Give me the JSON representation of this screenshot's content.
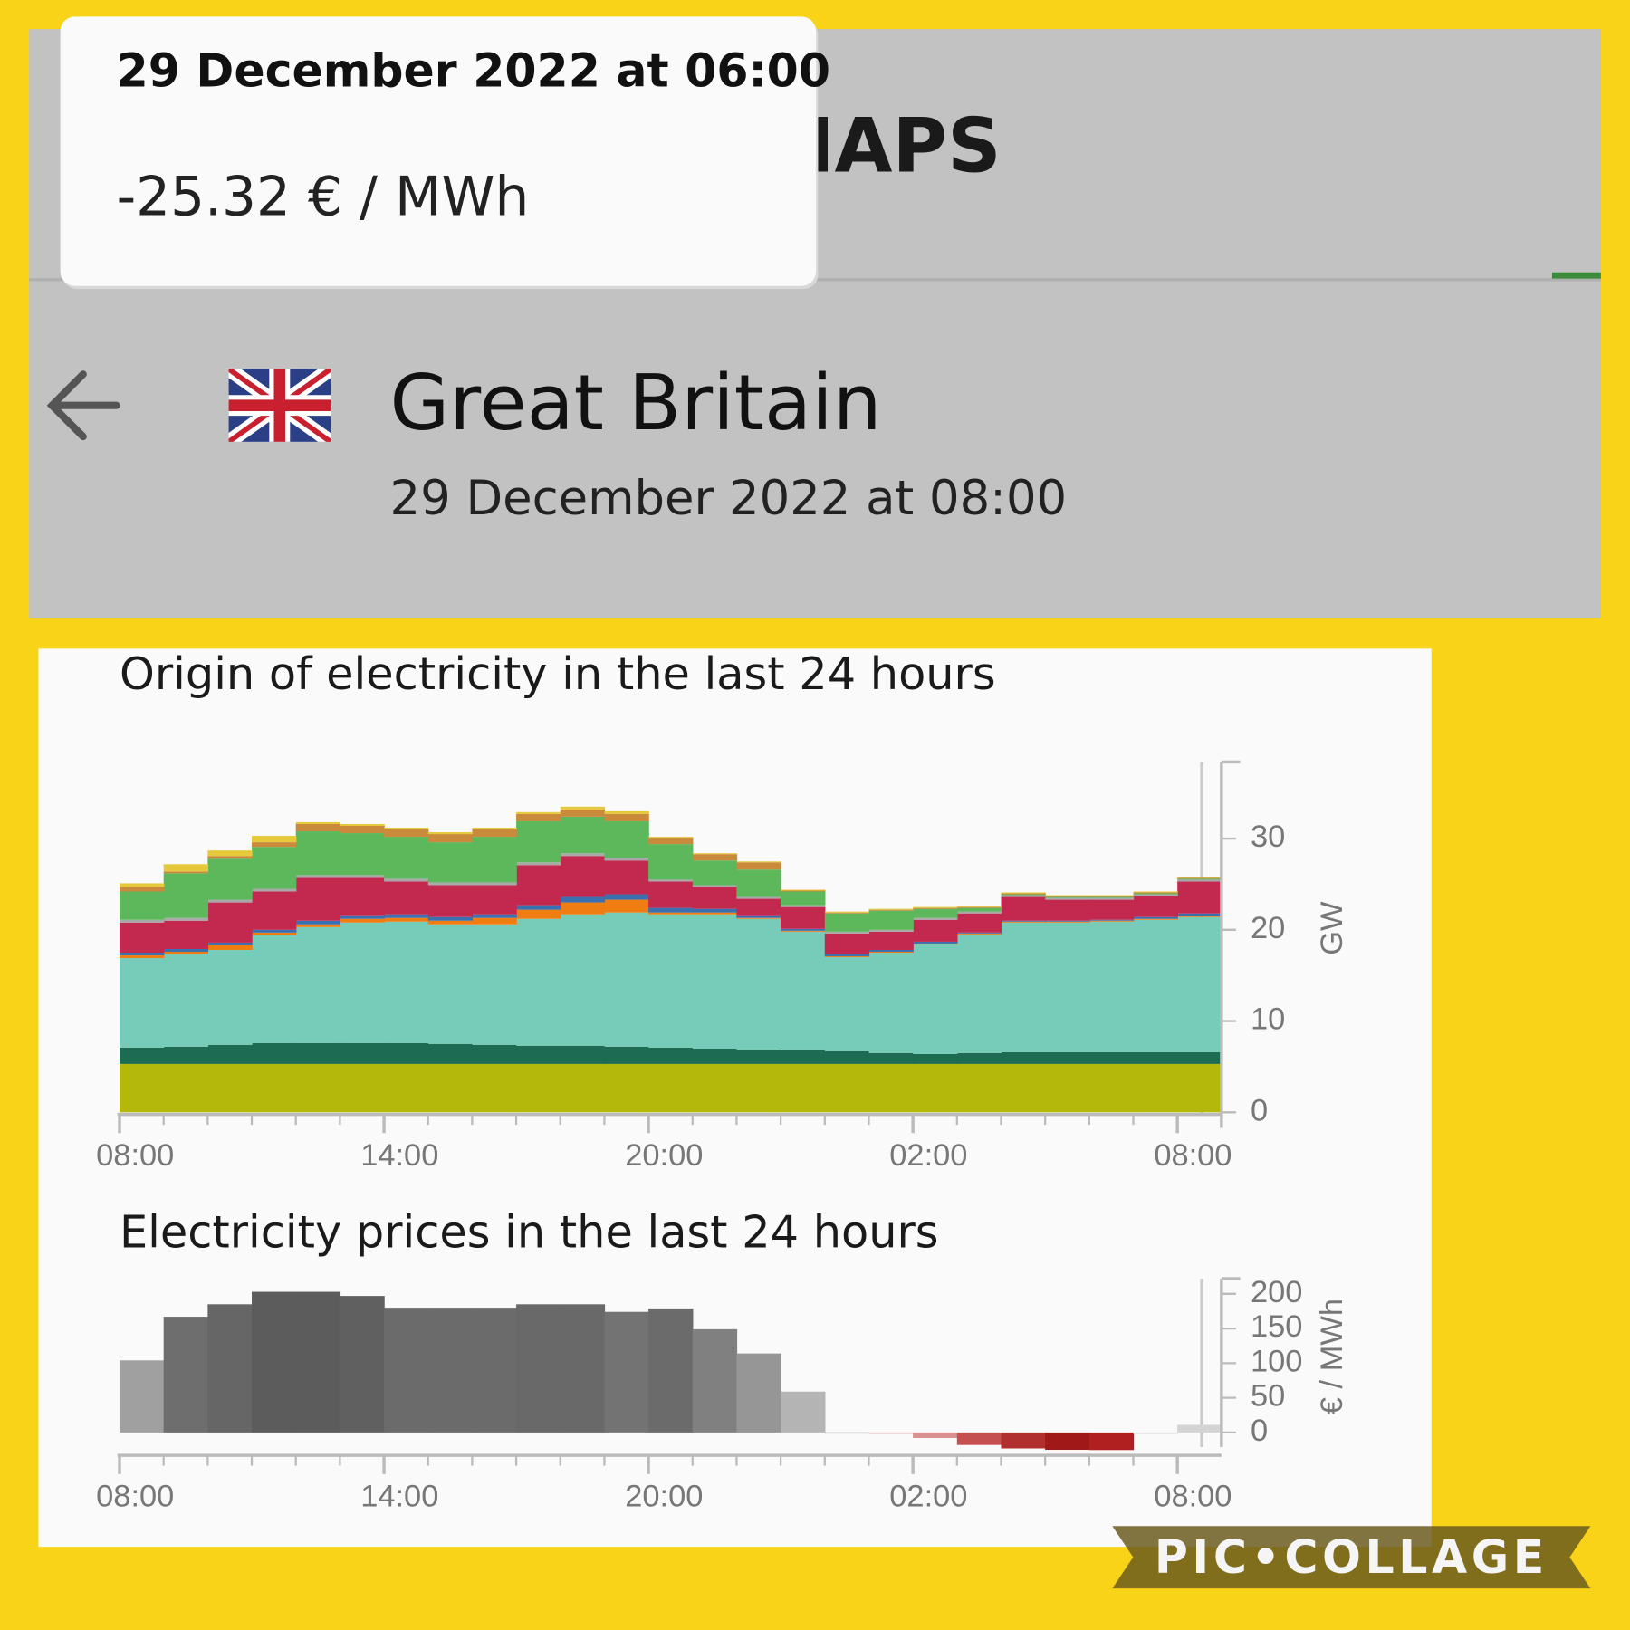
{
  "tooltip": {
    "title": "29 December 2022 at 06:00",
    "value": "-25.32 € / MWh"
  },
  "header": {
    "app_title": "IAPS",
    "country": "Great Britain",
    "date": "29 December 2022 at 08:00"
  },
  "chart_data": [
    {
      "type": "area",
      "stacked": true,
      "step": true,
      "title": "Origin of electricity in the last 24 hours",
      "y_label": "GW",
      "categories": [
        "08:00",
        null,
        null,
        null,
        null,
        null,
        "14:00",
        null,
        null,
        null,
        null,
        null,
        "20:00",
        null,
        null,
        null,
        null,
        null,
        "02:00",
        null,
        null,
        null,
        null,
        null,
        "08:00"
      ],
      "ylim": [
        0,
        38.4
      ],
      "yticks": [
        0,
        10,
        20,
        30
      ],
      "series": [
        {
          "color": "#b3b80a",
          "values": [
            5.3,
            5.3,
            5.3,
            5.3,
            5.3,
            5.3,
            5.3,
            5.3,
            5.3,
            5.3,
            5.3,
            5.3,
            5.3,
            5.3,
            5.3,
            5.3,
            5.3,
            5.3,
            5.3,
            5.3,
            5.3,
            5.3,
            5.3,
            5.3,
            5.3
          ]
        },
        {
          "color": "#1d6b52",
          "values": [
            1.8,
            1.9,
            2.1,
            2.3,
            2.3,
            2.3,
            2.3,
            2.2,
            2.1,
            2.0,
            2.0,
            1.9,
            1.8,
            1.7,
            1.6,
            1.5,
            1.4,
            1.2,
            1.1,
            1.2,
            1.3,
            1.3,
            1.3,
            1.3,
            1.3
          ]
        },
        {
          "color": "#76ccb9",
          "values": [
            9.8,
            10.1,
            10.4,
            11.8,
            12.7,
            13.2,
            13.3,
            13.1,
            13.2,
            13.9,
            14.4,
            14.7,
            14.6,
            14.7,
            14.3,
            13.0,
            10.3,
            11.0,
            12.0,
            13.0,
            14.2,
            14.2,
            14.3,
            14.5,
            14.8
          ]
        },
        {
          "color": "#f07d12",
          "values": [
            0.3,
            0.3,
            0.5,
            0.3,
            0.3,
            0.4,
            0.4,
            0.4,
            0.7,
            1.0,
            1.3,
            1.4,
            0.2,
            0.2,
            0.1,
            0.1,
            0.1,
            0.1,
            0.1,
            0.1,
            0.1,
            0.1,
            0.1,
            0.1,
            0.1
          ]
        },
        {
          "color": "#3a6fb0",
          "values": [
            0.3,
            0.3,
            0.3,
            0.3,
            0.4,
            0.4,
            0.4,
            0.4,
            0.4,
            0.5,
            0.6,
            0.6,
            0.5,
            0.4,
            0.3,
            0.2,
            0.2,
            0.2,
            0.2,
            0.1,
            0.1,
            0.1,
            0.1,
            0.2,
            0.3
          ]
        },
        {
          "color": "#c3284f",
          "values": [
            3.3,
            3.1,
            4.4,
            4.2,
            4.7,
            4.1,
            3.6,
            3.5,
            3.2,
            4.4,
            4.5,
            3.7,
            2.9,
            2.4,
            1.8,
            2.4,
            2.3,
            2.0,
            2.4,
            2.1,
            2.6,
            2.3,
            2.2,
            2.3,
            3.5
          ]
        },
        {
          "color": "#a8a8a8",
          "values": [
            0.3,
            0.3,
            0.3,
            0.3,
            0.3,
            0.3,
            0.3,
            0.3,
            0.3,
            0.3,
            0.3,
            0.3,
            0.2,
            0.2,
            0.2,
            0.2,
            0.2,
            0.2,
            0.2,
            0.2,
            0.2,
            0.2,
            0.2,
            0.2,
            0.2
          ]
        },
        {
          "color": "#5db85c",
          "values": [
            3.1,
            4.9,
            4.5,
            4.6,
            4.8,
            4.6,
            4.6,
            4.4,
            5.0,
            4.5,
            4.0,
            4.0,
            3.9,
            2.7,
            3.0,
            1.5,
            2.0,
            2.1,
            1.0,
            0.4,
            0.1,
            0.1,
            0.1,
            0.1,
            0.1
          ]
        },
        {
          "color": "#c98a3c",
          "values": [
            0.5,
            0.2,
            0.3,
            0.5,
            0.8,
            0.8,
            0.8,
            0.9,
            0.8,
            0.8,
            0.8,
            0.8,
            0.7,
            0.7,
            0.8,
            0.1,
            0.1,
            0.1,
            0.1,
            0.1,
            0.1,
            0.1,
            0.1,
            0.1,
            0.1
          ]
        },
        {
          "color": "#e6c93a",
          "values": [
            0.4,
            0.8,
            0.6,
            0.7,
            0.2,
            0.2,
            0.2,
            0.2,
            0.2,
            0.2,
            0.3,
            0.3,
            0.1,
            0.1,
            0.1,
            0.1,
            0.1,
            0.1,
            0.1,
            0.1,
            0.1,
            0.1,
            0.1,
            0.1,
            0.1
          ]
        }
      ]
    },
    {
      "type": "bar",
      "title": "Electricity prices in the last 24 hours",
      "y_label": "€ / MWh",
      "categories": [
        "08:00",
        null,
        null,
        null,
        null,
        null,
        "14:00",
        null,
        null,
        null,
        null,
        null,
        "20:00",
        null,
        null,
        null,
        null,
        null,
        "02:00",
        null,
        null,
        null,
        null,
        null,
        "08:00"
      ],
      "ylim": [
        -21,
        222
      ],
      "yticks": [
        0,
        50,
        100,
        150,
        200
      ],
      "values": [
        104,
        167,
        185,
        203,
        203,
        197,
        180,
        180,
        180,
        185,
        185,
        174,
        179,
        149,
        114,
        59,
        0.5,
        -2,
        -8,
        -18,
        -23,
        -25,
        -25.32,
        -1,
        11
      ],
      "colors": [
        "#a0a0a0",
        "#6e6e6e",
        "#666666",
        "#5c5c5c",
        "#5c5c5c",
        "#606060",
        "#6b6b6b",
        "#6b6b6b",
        "#6b6b6b",
        "#696969",
        "#696969",
        "#737373",
        "#6b6b6b",
        "#808080",
        "#969696",
        "#b4b4b4",
        "#d0d0d0",
        "#e0c8c8",
        "#d89090",
        "#c45050",
        "#b03030",
        "#a01818",
        "#b02020",
        "#e0e0e0",
        "#d4d4d4"
      ]
    }
  ],
  "watermark": "PIC•COLLAGE"
}
